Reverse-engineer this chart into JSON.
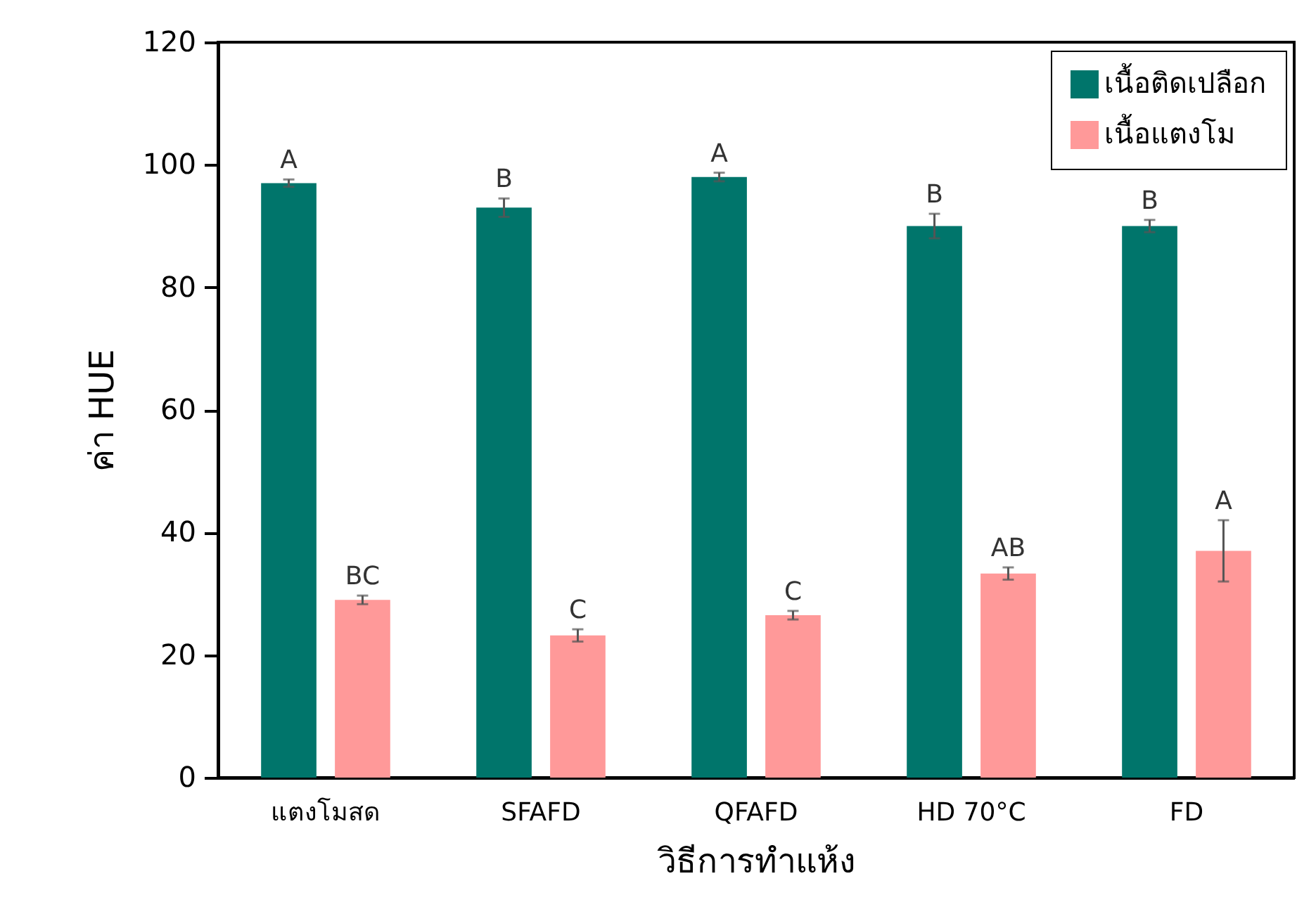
{
  "chart_data": {
    "type": "bar",
    "xlabel": "วิธีการทำแห้ง",
    "ylabel": "ค่า HUE",
    "categories": [
      "แตงโมสด",
      "SFAFD",
      "QFAFD",
      "HD 70°C",
      "FD"
    ],
    "series": [
      {
        "name": "เนื้อติดเปลือก",
        "color": "#00756b",
        "values": [
          97,
          93,
          98,
          90,
          90
        ],
        "errors": [
          0.6,
          1.5,
          0.7,
          2,
          1
        ],
        "value_labels": [
          "A",
          "B",
          "A",
          "B",
          "B"
        ]
      },
      {
        "name": "เนื้อแตงโม",
        "color": "#ff9999",
        "values": [
          29,
          23.2,
          26.5,
          33.3,
          37
        ],
        "errors": [
          0.7,
          1,
          0.7,
          1,
          5
        ],
        "value_labels": [
          "BC",
          "C",
          "C",
          "AB",
          "A"
        ]
      }
    ],
    "ylim": [
      0,
      120
    ],
    "yticks": [
      0,
      20,
      40,
      60,
      80,
      100,
      120
    ],
    "grid": false,
    "legend": "top right"
  }
}
